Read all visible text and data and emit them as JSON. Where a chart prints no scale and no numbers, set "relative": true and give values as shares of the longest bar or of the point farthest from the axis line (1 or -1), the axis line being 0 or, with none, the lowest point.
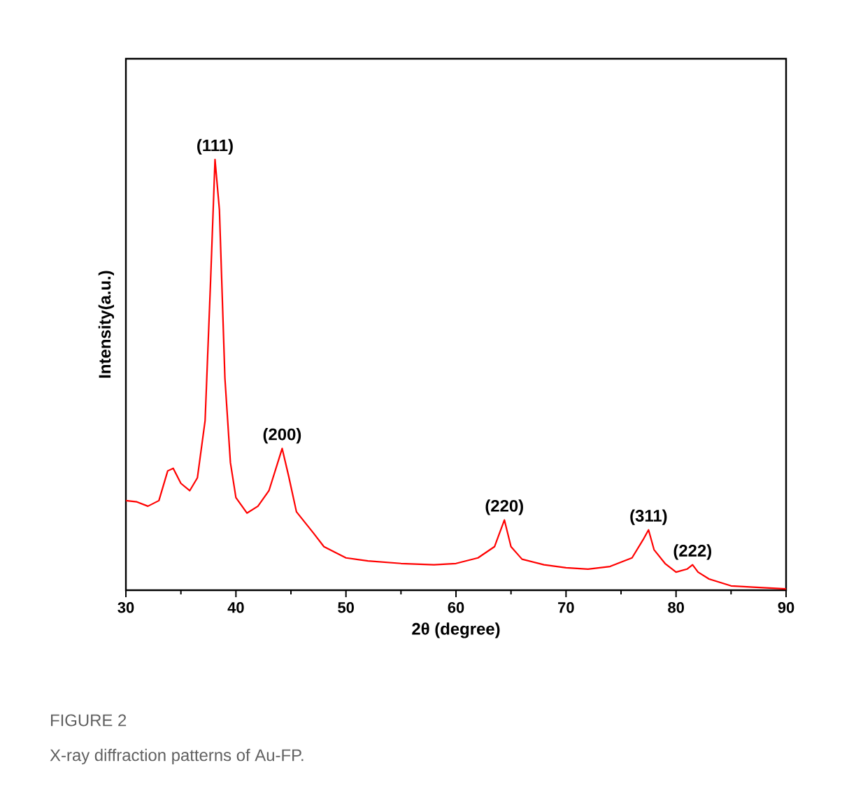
{
  "chart_data": {
    "type": "line",
    "xlabel": "2θ (degree)",
    "ylabel": "Intensity(a.u.)",
    "relative": true,
    "xlim": [
      30,
      90
    ],
    "xticks": [
      30,
      40,
      50,
      60,
      70,
      80,
      90
    ],
    "x": [
      30,
      31,
      32,
      33,
      33.8,
      34.3,
      35,
      35.8,
      36.5,
      37.2,
      37.7,
      38.1,
      38.5,
      39,
      39.5,
      40,
      41,
      42,
      43,
      43.8,
      44.2,
      44.8,
      45.5,
      47,
      48,
      50,
      52,
      55,
      58,
      60,
      62,
      63.5,
      64.4,
      65,
      66,
      68,
      70,
      72,
      74,
      76,
      77,
      77.5,
      78,
      79,
      80,
      81,
      81.5,
      82,
      83,
      85,
      87,
      90
    ],
    "series": [
      {
        "color": "#ff0000",
        "values": [
          0.208,
          0.205,
          0.195,
          0.208,
          0.277,
          0.283,
          0.248,
          0.231,
          0.261,
          0.394,
          0.72,
          1,
          0.883,
          0.492,
          0.296,
          0.215,
          0.179,
          0.195,
          0.231,
          0.296,
          0.329,
          0.264,
          0.182,
          0.134,
          0.101,
          0.075,
          0.068,
          0.062,
          0.059,
          0.062,
          0.075,
          0.101,
          0.163,
          0.101,
          0.072,
          0.059,
          0.052,
          0.049,
          0.055,
          0.075,
          0.117,
          0.14,
          0.094,
          0.062,
          0.042,
          0.049,
          0.059,
          0.042,
          0.026,
          0.01,
          0.007,
          0.003
        ]
      }
    ],
    "annotations": [
      {
        "text": "(111)",
        "x": 38.1,
        "y": 1
      },
      {
        "text": "(200)",
        "x": 44.2,
        "y": 0.329
      },
      {
        "text": "(220)",
        "x": 64.4,
        "y": 0.163
      },
      {
        "text": "(311)",
        "x": 77.5,
        "y": 0.14
      },
      {
        "text": "(222)",
        "x": 81.5,
        "y": 0.059
      },
      "FIGURE 2",
      "X-ray diffraction patterns of Au-FP."
    ]
  }
}
